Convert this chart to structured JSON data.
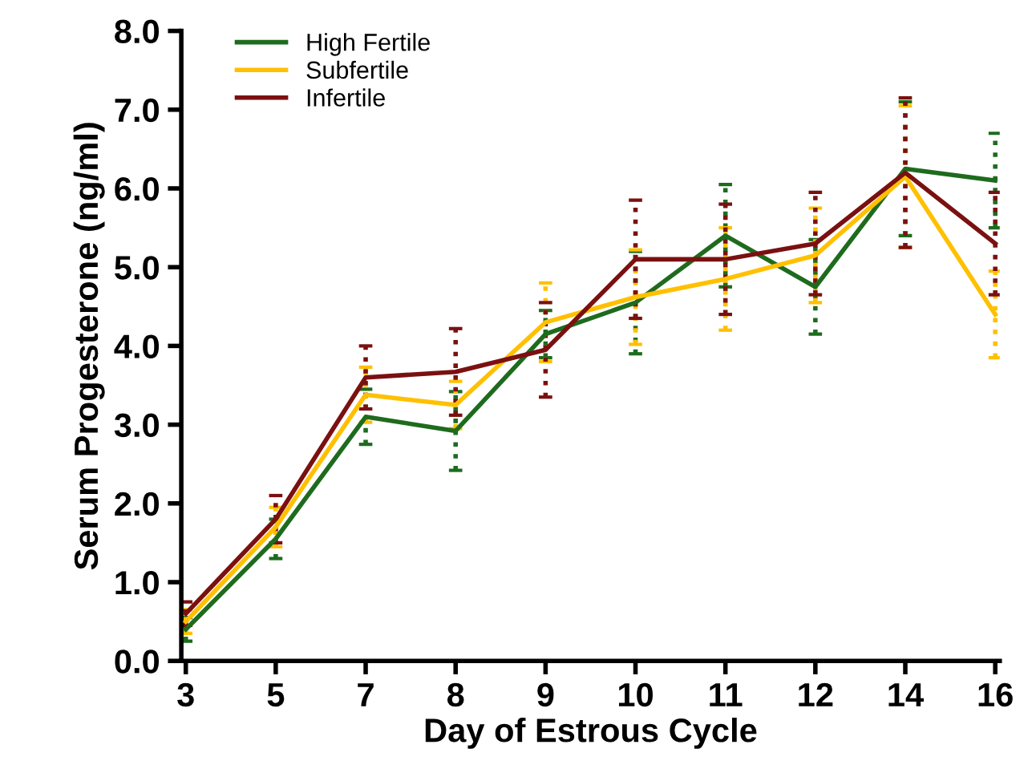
{
  "chart_data": {
    "type": "line",
    "xlabel": "Day of Estrous Cycle",
    "ylabel": "Serum Progesterone (ng/ml)",
    "categories": [
      "3",
      "5",
      "7",
      "8",
      "9",
      "10",
      "11",
      "12",
      "14",
      "16"
    ],
    "series": [
      {
        "name": "High Fertile",
        "color": "#1e6b1e",
        "values": [
          0.4,
          1.55,
          3.1,
          2.92,
          4.15,
          4.55,
          5.4,
          4.75,
          6.25,
          6.1
        ],
        "errors": [
          0.15,
          0.25,
          0.35,
          0.5,
          0.3,
          0.65,
          0.65,
          0.6,
          0.85,
          0.6
        ]
      },
      {
        "name": "Subfertile",
        "color": "#ffc000",
        "values": [
          0.5,
          1.7,
          3.38,
          3.25,
          4.3,
          4.62,
          4.85,
          5.15,
          6.15,
          4.4
        ],
        "errors": [
          0.15,
          0.25,
          0.35,
          0.3,
          0.5,
          0.6,
          0.65,
          0.6,
          0.9,
          0.55
        ]
      },
      {
        "name": "Infertile",
        "color": "#7b1010",
        "values": [
          0.6,
          1.8,
          3.6,
          3.67,
          3.95,
          5.1,
          5.1,
          5.3,
          6.2,
          5.3
        ],
        "errors": [
          0.15,
          0.3,
          0.4,
          0.55,
          0.6,
          0.75,
          0.7,
          0.65,
          0.95,
          0.65
        ]
      }
    ],
    "ylim": [
      0,
      8
    ],
    "yticks": [
      {
        "value": 0,
        "label": "0.0"
      },
      {
        "value": 1,
        "label": "1.0"
      },
      {
        "value": 2,
        "label": "2.0"
      },
      {
        "value": 3,
        "label": "3.0"
      },
      {
        "value": 4,
        "label": "4.0"
      },
      {
        "value": 5,
        "label": "5.0"
      },
      {
        "value": 6,
        "label": "6.0"
      },
      {
        "value": 7,
        "label": "7.0"
      },
      {
        "value": 8,
        "label": "8.0"
      }
    ],
    "grid": false,
    "legend": "top left",
    "marker": "none",
    "line_style": "solid"
  }
}
